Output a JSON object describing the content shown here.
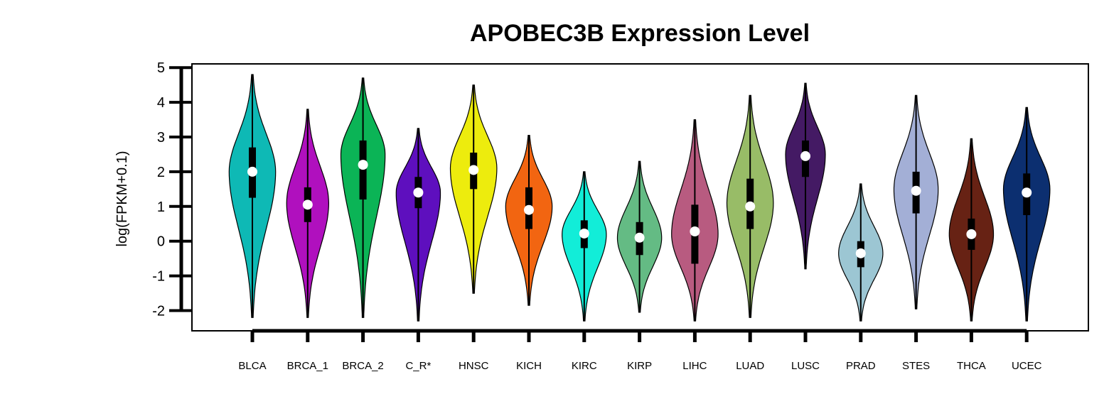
{
  "chart_data": {
    "type": "violin",
    "title": "APOBEC3B Expression Level",
    "xlabel": "",
    "ylabel": "log(FPKM+0.1)",
    "ylim": [
      -2.3,
      5
    ],
    "yticks": [
      -2,
      -1,
      0,
      1,
      2,
      3,
      4,
      5
    ],
    "ytick_labels": [
      "-2",
      "-1",
      "0",
      "1",
      "2",
      "3",
      "4",
      "5"
    ],
    "grid": false,
    "legend": "none",
    "categories": [
      "BLCA",
      "BRCA_1",
      "BRCA_2",
      "C_R*",
      "HNSC",
      "KICH",
      "KIRC",
      "KIRP",
      "LIHC",
      "LUAD",
      "LUSC",
      "PRAD",
      "STES",
      "THCA",
      "UCEC"
    ],
    "series": [
      {
        "category": "BLCA",
        "color": "#0EB9B5",
        "min": -2.2,
        "q1": 1.25,
        "median": 2.0,
        "q3": 2.7,
        "max": 4.8,
        "mode": 2.0,
        "half_width": 0.42
      },
      {
        "category": "BRCA_1",
        "color": "#B010BE",
        "min": -2.2,
        "q1": 0.55,
        "median": 1.05,
        "q3": 1.55,
        "max": 3.8,
        "mode": 1.1,
        "half_width": 0.38
      },
      {
        "category": "BRCA_2",
        "color": "#0BB456",
        "min": -2.2,
        "q1": 1.2,
        "median": 2.2,
        "q3": 2.9,
        "max": 4.7,
        "mode": 2.5,
        "half_width": 0.4
      },
      {
        "category": "C_R*",
        "color": "#5E0FBE",
        "min": -2.3,
        "q1": 0.95,
        "median": 1.4,
        "q3": 1.85,
        "max": 3.25,
        "mode": 1.4,
        "half_width": 0.4
      },
      {
        "category": "HNSC",
        "color": "#EDEC0D",
        "min": -1.5,
        "q1": 1.5,
        "median": 2.05,
        "q3": 2.55,
        "max": 4.5,
        "mode": 2.1,
        "half_width": 0.42
      },
      {
        "category": "KICH",
        "color": "#F26511",
        "min": -1.85,
        "q1": 0.35,
        "median": 0.9,
        "q3": 1.55,
        "max": 3.05,
        "mode": 1.0,
        "half_width": 0.42
      },
      {
        "category": "KIRC",
        "color": "#12EDD8",
        "min": -2.3,
        "q1": -0.2,
        "median": 0.22,
        "q3": 0.6,
        "max": 2.0,
        "mode": 0.2,
        "half_width": 0.4
      },
      {
        "category": "KIRP",
        "color": "#64BB84",
        "min": -2.05,
        "q1": -0.4,
        "median": 0.1,
        "q3": 0.55,
        "max": 2.3,
        "mode": 0.1,
        "half_width": 0.4
      },
      {
        "category": "LIHC",
        "color": "#B85B80",
        "min": -2.3,
        "q1": -0.65,
        "median": 0.28,
        "q3": 1.05,
        "max": 3.5,
        "mode": 0.2,
        "half_width": 0.42
      },
      {
        "category": "LUAD",
        "color": "#98BC67",
        "min": -2.2,
        "q1": 0.35,
        "median": 1.0,
        "q3": 1.8,
        "max": 4.2,
        "mode": 1.1,
        "half_width": 0.42
      },
      {
        "category": "LUSC",
        "color": "#441A64",
        "min": -0.8,
        "q1": 1.85,
        "median": 2.45,
        "q3": 2.9,
        "max": 4.55,
        "mode": 2.5,
        "half_width": 0.36
      },
      {
        "category": "PRAD",
        "color": "#9CC6D3",
        "min": -2.3,
        "q1": -0.75,
        "median": -0.35,
        "q3": 0.0,
        "max": 1.65,
        "mode": -0.35,
        "half_width": 0.4
      },
      {
        "category": "STES",
        "color": "#A3AFD6",
        "min": -1.95,
        "q1": 0.8,
        "median": 1.45,
        "q3": 2.0,
        "max": 4.2,
        "mode": 1.5,
        "half_width": 0.4
      },
      {
        "category": "THCA",
        "color": "#672214",
        "min": -2.3,
        "q1": -0.25,
        "median": 0.2,
        "q3": 0.65,
        "max": 2.95,
        "mode": 0.2,
        "half_width": 0.4
      },
      {
        "category": "UCEC",
        "color": "#0C2F70",
        "min": -2.3,
        "q1": 0.75,
        "median": 1.4,
        "q3": 1.95,
        "max": 3.85,
        "mode": 1.5,
        "half_width": 0.42
      }
    ]
  }
}
